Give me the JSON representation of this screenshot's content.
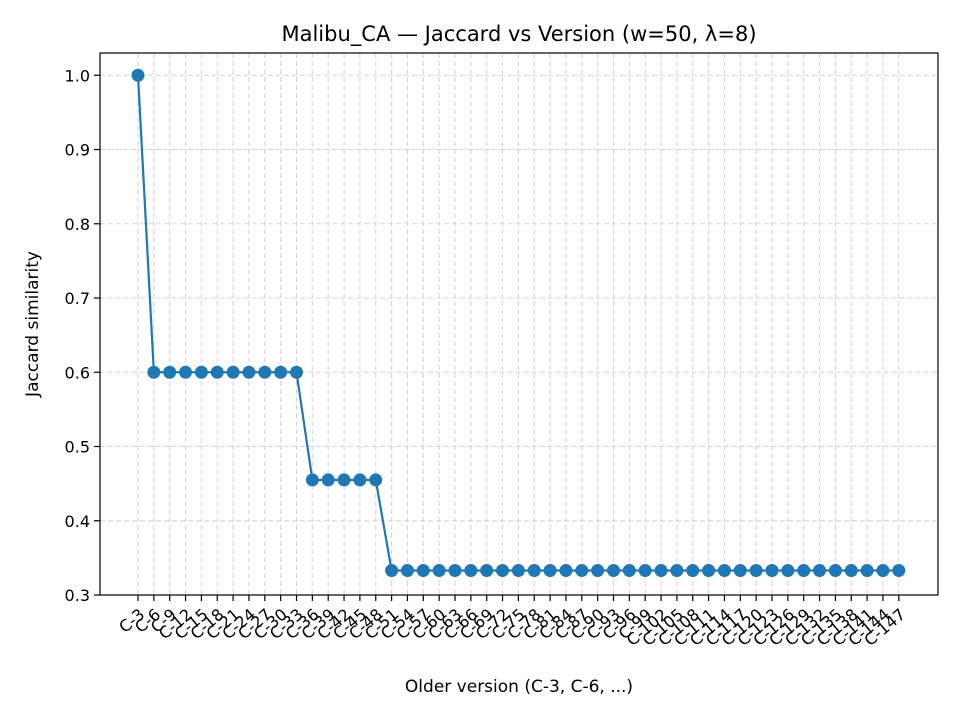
{
  "chart_data": {
    "type": "line",
    "title": "Malibu_CA — Jaccard vs Version (w=50, λ=8)",
    "xlabel": "Older version (C-3, C-6, ...)",
    "ylabel": "Jaccard similarity",
    "ylim": [
      0.3,
      1.03
    ],
    "yticks": [
      0.3,
      0.4,
      0.5,
      0.6,
      0.7,
      0.8,
      0.9,
      1.0
    ],
    "grid": true,
    "color": "#1f77b4",
    "categories": [
      "C-3",
      "C-6",
      "C-9",
      "C-12",
      "C-15",
      "C-18",
      "C-21",
      "C-24",
      "C-27",
      "C-30",
      "C-33",
      "C-36",
      "C-39",
      "C-42",
      "C-45",
      "C-48",
      "C-51",
      "C-54",
      "C-57",
      "C-60",
      "C-63",
      "C-66",
      "C-69",
      "C-72",
      "C-75",
      "C-78",
      "C-81",
      "C-84",
      "C-87",
      "C-90",
      "C-93",
      "C-96",
      "C-99",
      "C-102",
      "C-105",
      "C-108",
      "C-111",
      "C-114",
      "C-117",
      "C-120",
      "C-123",
      "C-126",
      "C-129",
      "C-132",
      "C-135",
      "C-138",
      "C-141",
      "C-144",
      "C-147"
    ],
    "values": [
      1.0,
      0.6,
      0.6,
      0.6,
      0.6,
      0.6,
      0.6,
      0.6,
      0.6,
      0.6,
      0.6,
      0.455,
      0.455,
      0.455,
      0.455,
      0.455,
      0.333,
      0.333,
      0.333,
      0.333,
      0.333,
      0.333,
      0.333,
      0.333,
      0.333,
      0.333,
      0.333,
      0.333,
      0.333,
      0.333,
      0.333,
      0.333,
      0.333,
      0.333,
      0.333,
      0.333,
      0.333,
      0.333,
      0.333,
      0.333,
      0.333,
      0.333,
      0.333,
      0.333,
      0.333,
      0.333,
      0.333,
      0.333,
      0.333
    ]
  }
}
